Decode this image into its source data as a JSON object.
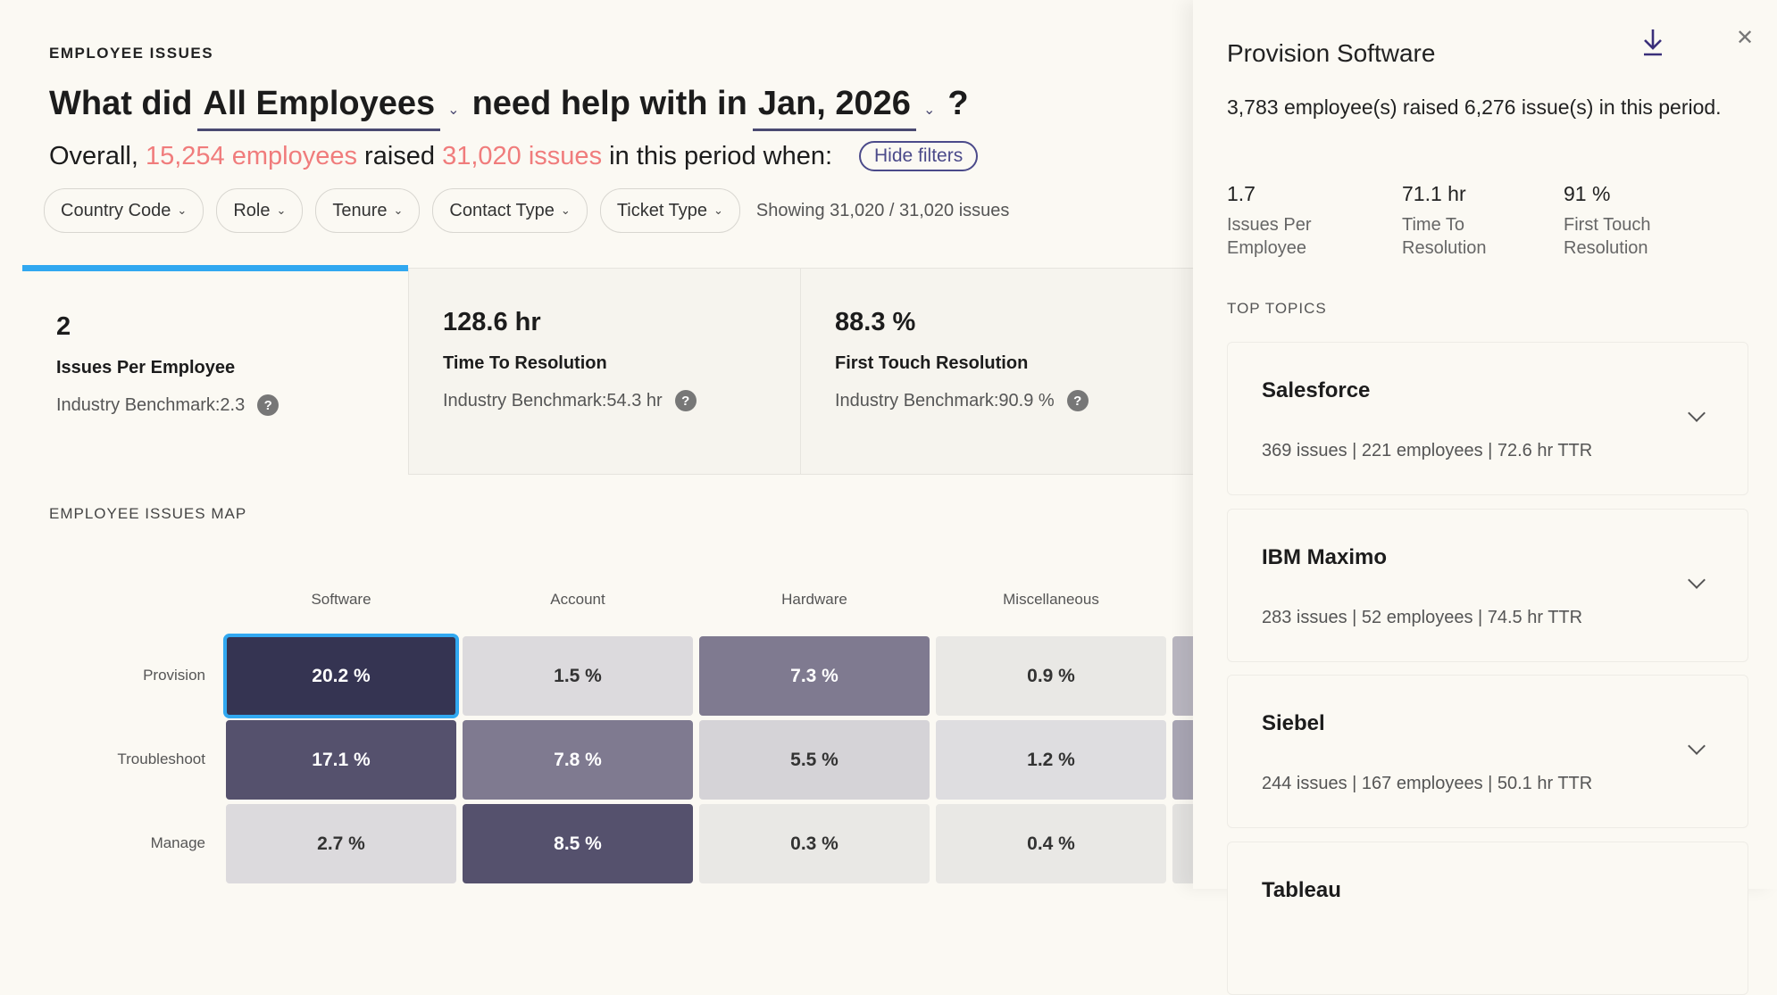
{
  "header": {
    "eyebrow": "EMPLOYEE ISSUES",
    "q_prefix": "What did",
    "employee_selector": "All Employees",
    "q_middle": "need help with in",
    "period_selector": "Jan, 2026",
    "q_suffix": "?"
  },
  "overall": {
    "prefix": "Overall,",
    "employees": "15,254 employees",
    "middle": "raised",
    "issues": "31,020 issues",
    "suffix": "in this period when:",
    "hide_filters": "Hide filters"
  },
  "filters": [
    {
      "label": "Country Code"
    },
    {
      "label": "Role"
    },
    {
      "label": "Tenure"
    },
    {
      "label": "Contact Type"
    },
    {
      "label": "Ticket Type"
    }
  ],
  "showing": "Showing 31,020 / 31,020 issues",
  "metrics": [
    {
      "value": "2",
      "label": "Issues Per Employee",
      "benchmark": "Industry Benchmark:2.3"
    },
    {
      "value": "128.6 hr",
      "label": "Time To Resolution",
      "benchmark": "Industry Benchmark:54.3 hr"
    },
    {
      "value": "88.3 %",
      "label": "First Touch Resolution",
      "benchmark": "Industry Benchmark:90.9 %"
    }
  ],
  "map": {
    "title": "EMPLOYEE ISSUES MAP",
    "columns": [
      "Software",
      "Account",
      "Hardware",
      "Miscellaneous"
    ],
    "rows": [
      {
        "label": "Provision",
        "cells": [
          "20.2 %",
          "1.5 %",
          "7.3 %",
          "0.9 %"
        ]
      },
      {
        "label": "Troubleshoot",
        "cells": [
          "17.1 %",
          "7.8 %",
          "5.5 %",
          "1.2 %"
        ]
      },
      {
        "label": "Manage",
        "cells": [
          "2.7 %",
          "8.5 %",
          "0.3 %",
          "0.4 %"
        ]
      }
    ],
    "selected": "Provision Software",
    "accent": "#31a8f0"
  },
  "panel": {
    "title": "Provision Software",
    "summary": "3,783 employee(s) raised 6,276 issue(s) in this period.",
    "stats": [
      {
        "value": "1.7",
        "label": "Issues Per Employee"
      },
      {
        "value": "71.1 hr",
        "label": "Time To Resolution"
      },
      {
        "value": "91 %",
        "label": "First Touch Resolution"
      }
    ],
    "top_topics_label": "TOP TOPICS",
    "topics": [
      {
        "name": "Salesforce",
        "detail": "369 issues | 221 employees | 72.6 hr TTR"
      },
      {
        "name": "IBM Maximo",
        "detail": "283 issues | 52 employees | 74.5 hr TTR"
      },
      {
        "name": "Siebel",
        "detail": "244 issues | 167 employees | 50.1 hr TTR"
      },
      {
        "name": "Tableau",
        "detail": ""
      }
    ]
  }
}
